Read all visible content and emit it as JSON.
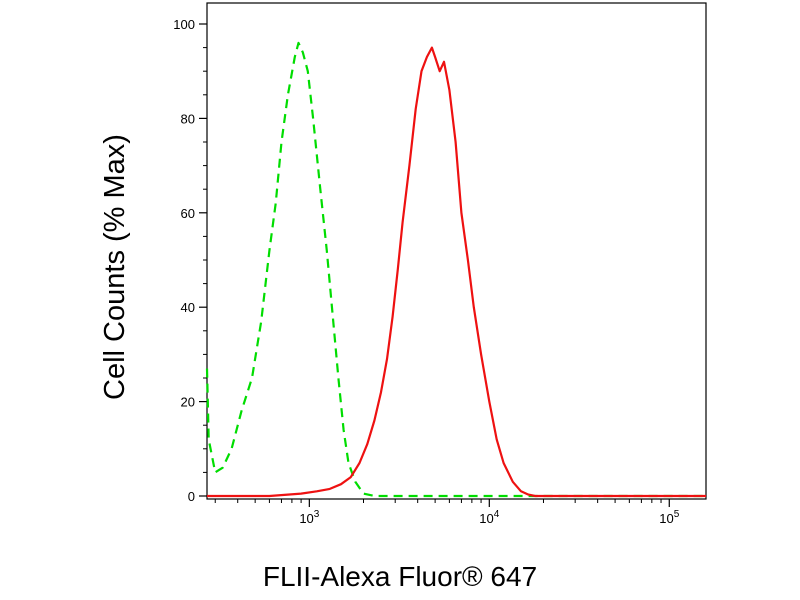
{
  "chart_data": {
    "type": "line",
    "xlabel": "FLII-Alexa Fluor® 647",
    "ylabel": "Cell Counts (% Max)",
    "x_scale": "log",
    "xlim": [
      270,
      160000
    ],
    "ylim": [
      0,
      105
    ],
    "y_ticks": [
      0,
      20,
      40,
      60,
      80,
      100
    ],
    "x_ticks": [
      {
        "value": 1000,
        "base": "10",
        "exp": "3"
      },
      {
        "value": 10000,
        "base": "10",
        "exp": "4"
      },
      {
        "value": 100000,
        "base": "10",
        "exp": "5"
      }
    ],
    "grid": false,
    "series": [
      {
        "color": "#00dd00",
        "dash": true,
        "points": [
          [
            270,
            27
          ],
          [
            276,
            12
          ],
          [
            300,
            5
          ],
          [
            330,
            6
          ],
          [
            370,
            10
          ],
          [
            420,
            18
          ],
          [
            480,
            25
          ],
          [
            540,
            37
          ],
          [
            600,
            52
          ],
          [
            650,
            62
          ],
          [
            700,
            75
          ],
          [
            760,
            85
          ],
          [
            830,
            93
          ],
          [
            870,
            96
          ],
          [
            920,
            94
          ],
          [
            980,
            90
          ],
          [
            1050,
            80
          ],
          [
            1150,
            65
          ],
          [
            1250,
            52
          ],
          [
            1350,
            38
          ],
          [
            1450,
            25
          ],
          [
            1550,
            14
          ],
          [
            1650,
            7
          ],
          [
            1800,
            3
          ],
          [
            2000,
            0.5
          ],
          [
            2300,
            0
          ],
          [
            160000,
            0
          ]
        ]
      },
      {
        "color": "#ee1111",
        "dash": false,
        "points": [
          [
            270,
            0
          ],
          [
            600,
            0
          ],
          [
            900,
            0.5
          ],
          [
            1100,
            1
          ],
          [
            1300,
            1.5
          ],
          [
            1500,
            2.5
          ],
          [
            1700,
            4
          ],
          [
            1900,
            7
          ],
          [
            2100,
            11
          ],
          [
            2300,
            16
          ],
          [
            2500,
            22
          ],
          [
            2700,
            29
          ],
          [
            2900,
            38
          ],
          [
            3100,
            48
          ],
          [
            3300,
            58
          ],
          [
            3600,
            70
          ],
          [
            3900,
            82
          ],
          [
            4200,
            90
          ],
          [
            4500,
            93
          ],
          [
            4800,
            95
          ],
          [
            5000,
            93
          ],
          [
            5300,
            90
          ],
          [
            5600,
            92
          ],
          [
            6000,
            86
          ],
          [
            6500,
            75
          ],
          [
            7000,
            60
          ],
          [
            7600,
            50
          ],
          [
            8200,
            40
          ],
          [
            9000,
            30
          ],
          [
            10000,
            20
          ],
          [
            11000,
            12
          ],
          [
            12000,
            7
          ],
          [
            13500,
            3
          ],
          [
            15000,
            1
          ],
          [
            16500,
            0.3
          ],
          [
            18000,
            0
          ],
          [
            160000,
            0
          ]
        ]
      }
    ]
  }
}
